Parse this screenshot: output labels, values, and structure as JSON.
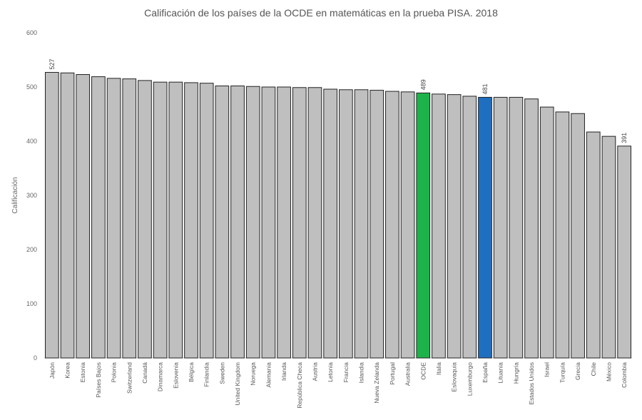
{
  "chart_data": {
    "type": "bar",
    "title": "Calificación de los países de la OCDE en matemáticas en la prueba PISA. 2018",
    "xlabel": "",
    "ylabel": "Calificación",
    "ylim": [
      0,
      600
    ],
    "yticks": [
      0,
      100,
      200,
      300,
      400,
      500,
      600
    ],
    "grid": false,
    "categories": [
      "Japón",
      "Korea",
      "Estonia",
      "Países Bajos",
      "Polonia",
      "Switzerland",
      "Canadá",
      "Dinamarca",
      "Eslovenia",
      "Bélgica",
      "Finlandia",
      "Sweden",
      "United Kingdom",
      "Noruega",
      "Alemania",
      "Irlanda",
      "República Checa",
      "Austria",
      "Letonia",
      "Francia",
      "Islandia",
      "Nueva Zelanda",
      "Portugal",
      "Australia",
      "OCDE",
      "Italia",
      "Eslovaquia",
      "Luxemburgo",
      "España",
      "Lituania",
      "Hungría",
      "Estados Unidos",
      "Israel",
      "Turquía",
      "Grecia",
      "Chile",
      "México",
      "Colombia"
    ],
    "values": [
      527,
      526,
      523,
      519,
      516,
      515,
      512,
      509,
      509,
      508,
      507,
      502,
      502,
      501,
      500,
      500,
      499,
      499,
      496,
      495,
      495,
      494,
      492,
      491,
      489,
      487,
      486,
      483,
      481,
      481,
      481,
      478,
      463,
      454,
      451,
      417,
      409,
      391
    ],
    "data_labels": {
      "Japón": "527",
      "OCDE": "489",
      "España": "481",
      "Colombia": "391"
    },
    "colors": {
      "default": "#bfbfbf",
      "OCDE": "#1db34a",
      "España": "#1f6fc0",
      "outline": "#222222"
    }
  }
}
